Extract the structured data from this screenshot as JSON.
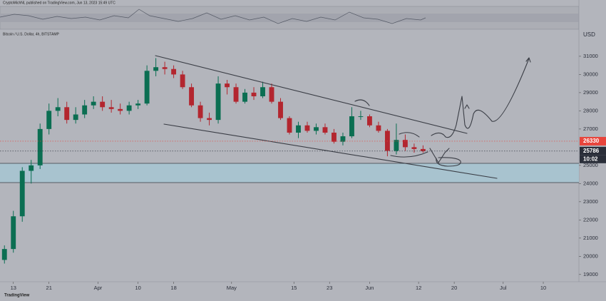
{
  "header": "CryptoMichNL published on TradingView.com, Jun 13, 2023 15:49 UTC",
  "footer": "TradingView",
  "chart_data": {
    "type": "candlestick",
    "title": "Bitcoin / U.S. Dollar, 4h, BITSTAMP",
    "y_axis_label": "USD",
    "x": [
      70,
      72,
      74,
      76,
      78,
      80,
      82,
      84,
      86,
      88,
      90,
      92,
      94,
      96,
      98,
      100,
      102,
      104,
      106,
      108,
      110,
      112,
      114,
      116,
      118,
      120,
      122,
      124,
      126,
      128,
      130,
      132,
      134,
      136,
      138,
      140,
      142,
      144,
      146,
      148,
      150,
      152,
      154,
      156,
      158,
      160,
      162,
      164
    ],
    "open": [
      19800,
      20400,
      22200,
      24700,
      25000,
      27000,
      28000,
      28200,
      27500,
      27800,
      28300,
      28500,
      28200,
      28100,
      28000,
      28300,
      28400,
      30200,
      30400,
      30300,
      30000,
      29300,
      28300,
      27600,
      27500,
      29500,
      29300,
      28500,
      29000,
      28800,
      29300,
      28500,
      27600,
      26800,
      27200,
      26900,
      27100,
      26800,
      26300,
      26600,
      27700,
      27700,
      27200,
      26900,
      25800,
      26400,
      26000,
      25900
    ],
    "high": [
      20600,
      22500,
      24900,
      25300,
      27300,
      28400,
      28700,
      28500,
      28200,
      28600,
      28800,
      28800,
      28600,
      28400,
      28500,
      28600,
      30500,
      30900,
      30700,
      30500,
      30200,
      29500,
      28500,
      27900,
      29900,
      29700,
      29500,
      29200,
      29300,
      29600,
      29500,
      28700,
      27700,
      27400,
      27400,
      27300,
      27300,
      27000,
      26800,
      28200,
      28000,
      27800,
      27400,
      27000,
      27300,
      26700,
      26200,
      26100
    ],
    "low": [
      19600,
      20200,
      21900,
      24000,
      24800,
      26700,
      27700,
      27300,
      27300,
      27600,
      28100,
      28000,
      27900,
      27800,
      27800,
      28100,
      28300,
      29900,
      30000,
      29800,
      29200,
      28200,
      27400,
      27200,
      27300,
      28900,
      28400,
      28400,
      28600,
      28700,
      28400,
      27500,
      26700,
      26500,
      26800,
      26700,
      26700,
      26200,
      26100,
      26500,
      27500,
      27100,
      26800,
      25500,
      25600,
      25800,
      25700,
      25700
    ],
    "close": [
      20400,
      22200,
      24700,
      25000,
      27000,
      28000,
      28200,
      27500,
      27800,
      28300,
      28500,
      28200,
      28100,
      28000,
      28300,
      28400,
      30200,
      30400,
      30300,
      30000,
      29300,
      28300,
      27600,
      27500,
      29500,
      29300,
      28500,
      29000,
      28800,
      29300,
      28500,
      27600,
      26800,
      27200,
      26900,
      27100,
      26800,
      26300,
      26600,
      27700,
      27700,
      27200,
      26900,
      25800,
      26400,
      26000,
      25900,
      25786
    ],
    "up_color": "#0b6e52",
    "down_color": "#b3262f",
    "xlim": [
      69,
      199
    ],
    "xticks": [
      {
        "value": 72,
        "label": "13"
      },
      {
        "value": 80,
        "label": "21"
      },
      {
        "value": 91,
        "label": "Apr"
      },
      {
        "value": 100,
        "label": "10"
      },
      {
        "value": 108,
        "label": "18"
      },
      {
        "value": 121,
        "label": "May"
      },
      {
        "value": 135,
        "label": "15"
      },
      {
        "value": 143,
        "label": "23"
      },
      {
        "value": 152,
        "label": "Jun"
      },
      {
        "value": 163,
        "label": "12"
      },
      {
        "value": 171,
        "label": "20"
      },
      {
        "value": 182,
        "label": "Jul"
      },
      {
        "value": 191,
        "label": "10"
      }
    ],
    "ylim": [
      18600,
      32330
    ],
    "yticks": [
      19000,
      20000,
      21000,
      22000,
      23000,
      24000,
      25000,
      27000,
      28000,
      29000,
      30000,
      31000
    ],
    "price_labels": [
      {
        "value": 26330,
        "color": "#e8453c"
      },
      {
        "value": 25786,
        "color": "#2a2e39"
      }
    ],
    "countdown": "10:02"
  }
}
